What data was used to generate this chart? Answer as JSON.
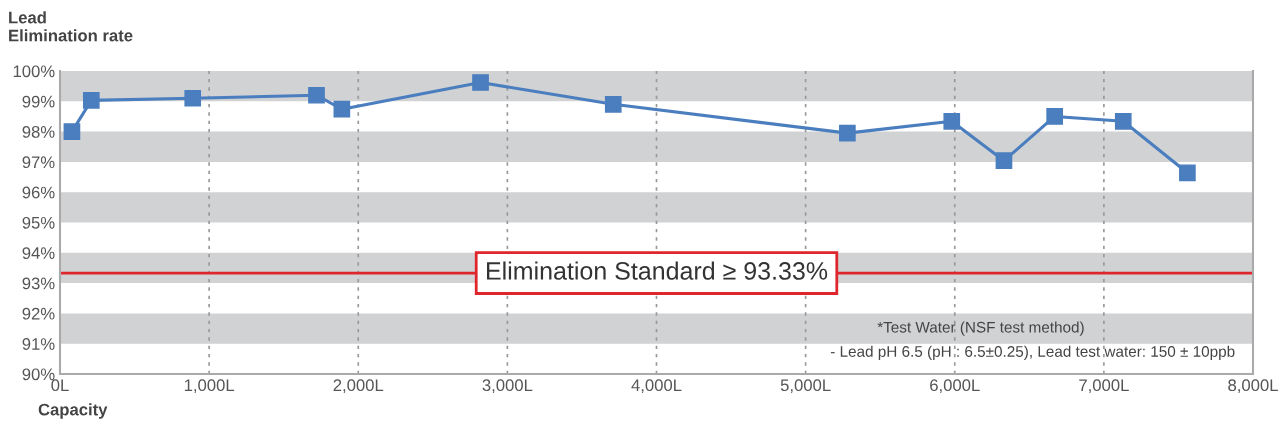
{
  "chart_data": {
    "type": "line",
    "ylabel": "Lead\nElimination rate",
    "xlabel": "Capacity",
    "x": [
      80,
      210,
      890,
      1720,
      1890,
      2820,
      3710,
      5280,
      5980,
      6330,
      6670,
      7130,
      7560
    ],
    "series": [
      {
        "color": "#4a7ebf",
        "values": [
          98.0,
          99.03,
          99.1,
          99.2,
          98.74,
          99.62,
          98.9,
          97.95,
          98.34,
          97.04,
          98.5,
          98.34,
          96.64
        ]
      }
    ],
    "marker": "square",
    "line_style": "solid",
    "grid": "x",
    "xlim": [
      0,
      8000
    ],
    "xticks": [
      {
        "value": 0,
        "label": "0L"
      },
      {
        "value": 1000,
        "label": "1,000L"
      },
      {
        "value": 2000,
        "label": "2,000L"
      },
      {
        "value": 3000,
        "label": "3,000L"
      },
      {
        "value": 4000,
        "label": "4,000L"
      },
      {
        "value": 5000,
        "label": "5,000L"
      },
      {
        "value": 6000,
        "label": "6,000L"
      },
      {
        "value": 7000,
        "label": "7,000L"
      },
      {
        "value": 8000,
        "label": "8,000L"
      }
    ],
    "ylim": [
      90,
      100
    ],
    "yticks": [
      {
        "value": 90,
        "label": "90%"
      },
      {
        "value": 91,
        "label": "91%"
      },
      {
        "value": 92,
        "label": "92%"
      },
      {
        "value": 93,
        "label": "93%"
      },
      {
        "value": 94,
        "label": "94%"
      },
      {
        "value": 95,
        "label": "95%"
      },
      {
        "value": 96,
        "label": "96%"
      },
      {
        "value": 97,
        "label": "97%"
      },
      {
        "value": 98,
        "label": "98%"
      },
      {
        "value": 99,
        "label": "99%"
      },
      {
        "value": 100,
        "label": "100%"
      }
    ],
    "bands": [
      {
        "axis": "y",
        "from": 99,
        "to": 100,
        "color": "#d1d2d4"
      },
      {
        "axis": "y",
        "from": 97,
        "to": 98,
        "color": "#d1d2d4"
      },
      {
        "axis": "y",
        "from": 95,
        "to": 96,
        "color": "#d1d2d4"
      },
      {
        "axis": "y",
        "from": 93,
        "to": 94,
        "color": "#d1d2d4"
      },
      {
        "axis": "y",
        "from": 91,
        "to": 92,
        "color": "#d1d2d4"
      }
    ],
    "ref_lines": [
      {
        "axis": "y",
        "value": 93.33,
        "color": "#e0262d",
        "line_style": "solid"
      }
    ],
    "annotations": [
      {
        "text": "Elimination Standard ≥ 93.33%",
        "x": 4000,
        "y": 93.33
      },
      "*Test Water (NSF test method)",
      "- Lead pH 6.5 (pH : 6.5±0.25), Lead test water: 150 ± 10ppb"
    ]
  }
}
